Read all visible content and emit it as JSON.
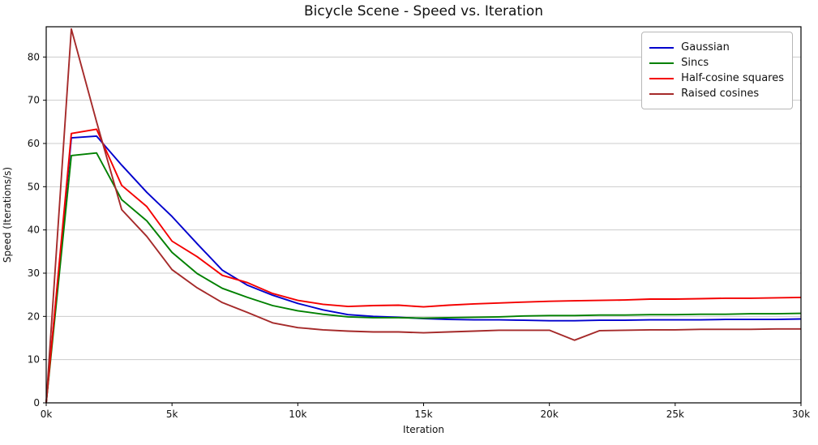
{
  "chart_data": {
    "type": "line",
    "title": "Bicycle Scene - Speed vs. Iteration",
    "xlabel": "Iteration",
    "ylabel": "Speed (Iterations/s)",
    "xlim": [
      0,
      30000
    ],
    "ylim": [
      0,
      87
    ],
    "grid": "horizontal",
    "grid_color": "#cccccc",
    "legend_position": "upper right",
    "x_ticks": [
      {
        "v": 0,
        "label": "0k"
      },
      {
        "v": 5000,
        "label": "5k"
      },
      {
        "v": 10000,
        "label": "10k"
      },
      {
        "v": 15000,
        "label": "15k"
      },
      {
        "v": 20000,
        "label": "20k"
      },
      {
        "v": 25000,
        "label": "25k"
      },
      {
        "v": 30000,
        "label": "30k"
      }
    ],
    "y_ticks": [
      {
        "v": 0,
        "label": "0"
      },
      {
        "v": 10,
        "label": "10"
      },
      {
        "v": 20,
        "label": "20"
      },
      {
        "v": 30,
        "label": "30"
      },
      {
        "v": 40,
        "label": "40"
      },
      {
        "v": 50,
        "label": "50"
      },
      {
        "v": 60,
        "label": "60"
      },
      {
        "v": 70,
        "label": "70"
      },
      {
        "v": 80,
        "label": "80"
      }
    ],
    "x": [
      0,
      1000,
      2000,
      3000,
      4000,
      5000,
      6000,
      7000,
      8000,
      9000,
      10000,
      11000,
      12000,
      13000,
      14000,
      15000,
      16000,
      17000,
      18000,
      19000,
      20000,
      21000,
      22000,
      23000,
      24000,
      25000,
      26000,
      27000,
      28000,
      29000,
      30000
    ],
    "series": [
      {
        "name": "Gaussian",
        "color": "#0000cd",
        "values": [
          0,
          61.3,
          61.7,
          55.0,
          48.7,
          43.1,
          36.8,
          30.7,
          27.2,
          24.9,
          23.0,
          21.5,
          20.4,
          20.0,
          19.8,
          19.5,
          19.3,
          19.2,
          19.2,
          19.1,
          19.0,
          19.0,
          19.1,
          19.1,
          19.2,
          19.2,
          19.2,
          19.3,
          19.3,
          19.3,
          19.4
        ]
      },
      {
        "name": "Sincs",
        "color": "#008000",
        "values": [
          0,
          57.2,
          57.8,
          47.0,
          42.1,
          34.8,
          29.9,
          26.5,
          24.4,
          22.5,
          21.3,
          20.5,
          19.9,
          19.7,
          19.7,
          19.6,
          19.7,
          19.8,
          19.9,
          20.1,
          20.2,
          20.2,
          20.3,
          20.3,
          20.4,
          20.4,
          20.5,
          20.5,
          20.6,
          20.6,
          20.7
        ]
      },
      {
        "name": "Half-cosine squares",
        "color": "#f40000",
        "values": [
          0,
          62.3,
          63.3,
          50.3,
          45.4,
          37.4,
          33.8,
          29.5,
          27.8,
          25.3,
          23.7,
          22.8,
          22.3,
          22.5,
          22.6,
          22.2,
          22.6,
          22.9,
          23.1,
          23.3,
          23.5,
          23.6,
          23.7,
          23.8,
          24.0,
          24.0,
          24.1,
          24.2,
          24.2,
          24.3,
          24.4
        ]
      },
      {
        "name": "Raised cosines",
        "color": "#a52a2a",
        "values": [
          0,
          86.5,
          65.0,
          44.7,
          38.5,
          30.8,
          26.6,
          23.2,
          20.9,
          18.5,
          17.4,
          16.9,
          16.6,
          16.4,
          16.4,
          16.2,
          16.4,
          16.6,
          16.8,
          16.8,
          16.8,
          14.5,
          16.7,
          16.8,
          16.9,
          16.9,
          17.0,
          17.0,
          17.0,
          17.1,
          17.1
        ]
      }
    ]
  }
}
